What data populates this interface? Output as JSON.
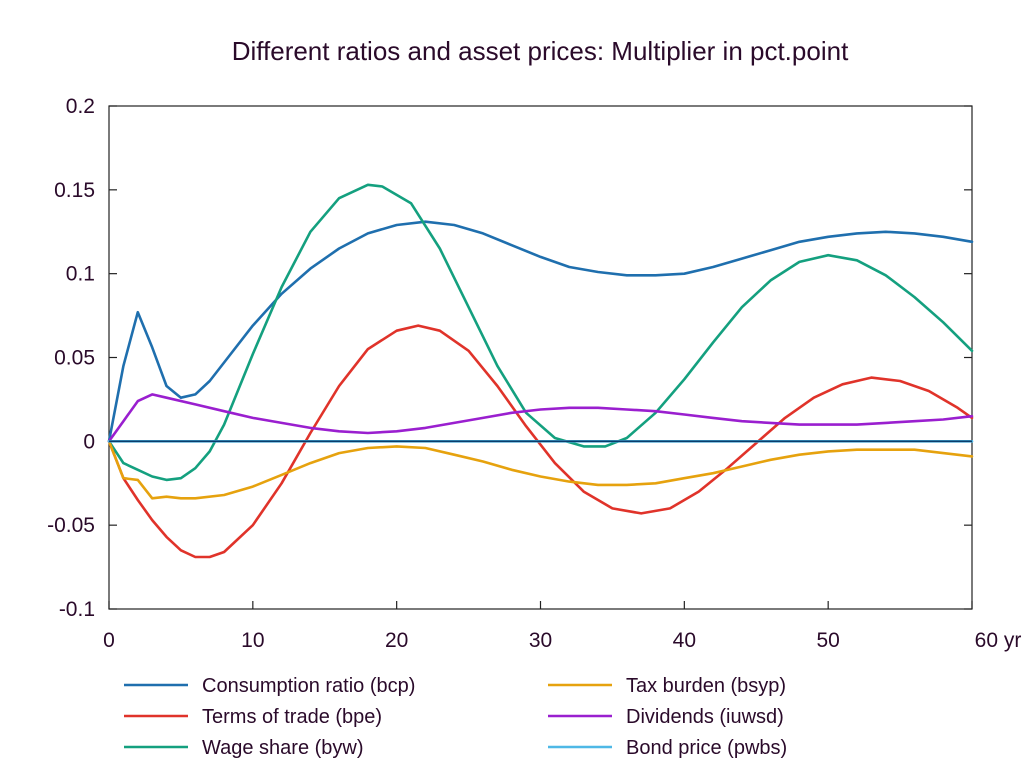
{
  "chart_data": {
    "type": "line",
    "title": "Different ratios and asset prices: Multiplier in pct.point",
    "xlim": [
      0,
      60
    ],
    "ylim": [
      -0.1,
      0.2
    ],
    "x_ticks": [
      0,
      10,
      20,
      30,
      40,
      50,
      60
    ],
    "x_tick_labels": [
      "0",
      "10",
      "20",
      "30",
      "40",
      "50",
      "60 yr"
    ],
    "y_ticks": [
      -0.1,
      -0.05,
      0,
      0.05,
      0.1,
      0.15,
      0.2
    ],
    "y_tick_labels": [
      "-0.1",
      "-0.05",
      "0",
      "0.05",
      "0.1",
      "0.15",
      "0.2"
    ],
    "zero_line": true,
    "grid": false,
    "legend_position": "bottom",
    "series": [
      {
        "name": "Consumption ratio (bcp)",
        "color": "#1f6fae",
        "points": [
          [
            0,
            0
          ],
          [
            1,
            0.045
          ],
          [
            2,
            0.077
          ],
          [
            3,
            0.056
          ],
          [
            4,
            0.033
          ],
          [
            5,
            0.026
          ],
          [
            6,
            0.028
          ],
          [
            7,
            0.036
          ],
          [
            8,
            0.047
          ],
          [
            10,
            0.069
          ],
          [
            12,
            0.088
          ],
          [
            14,
            0.103
          ],
          [
            16,
            0.115
          ],
          [
            18,
            0.124
          ],
          [
            20,
            0.129
          ],
          [
            22,
            0.131
          ],
          [
            24,
            0.129
          ],
          [
            26,
            0.124
          ],
          [
            28,
            0.117
          ],
          [
            30,
            0.11
          ],
          [
            32,
            0.104
          ],
          [
            34,
            0.101
          ],
          [
            36,
            0.099
          ],
          [
            38,
            0.099
          ],
          [
            40,
            0.1
          ],
          [
            42,
            0.104
          ],
          [
            44,
            0.109
          ],
          [
            46,
            0.114
          ],
          [
            48,
            0.119
          ],
          [
            50,
            0.122
          ],
          [
            52,
            0.124
          ],
          [
            54,
            0.125
          ],
          [
            56,
            0.124
          ],
          [
            58,
            0.122
          ],
          [
            60,
            0.119
          ]
        ]
      },
      {
        "name": "Terms of trade (bpe)",
        "color": "#e0332a",
        "points": [
          [
            0,
            0
          ],
          [
            1,
            -0.022
          ],
          [
            2,
            -0.035
          ],
          [
            3,
            -0.047
          ],
          [
            4,
            -0.057
          ],
          [
            5,
            -0.065
          ],
          [
            6,
            -0.069
          ],
          [
            7,
            -0.069
          ],
          [
            8,
            -0.066
          ],
          [
            10,
            -0.05
          ],
          [
            12,
            -0.025
          ],
          [
            14,
            0.005
          ],
          [
            16,
            0.033
          ],
          [
            18,
            0.055
          ],
          [
            20,
            0.066
          ],
          [
            21.5,
            0.069
          ],
          [
            23,
            0.066
          ],
          [
            25,
            0.054
          ],
          [
            27,
            0.033
          ],
          [
            29,
            0.009
          ],
          [
            31,
            -0.013
          ],
          [
            33,
            -0.03
          ],
          [
            35,
            -0.04
          ],
          [
            37,
            -0.043
          ],
          [
            39,
            -0.04
          ],
          [
            41,
            -0.03
          ],
          [
            43,
            -0.016
          ],
          [
            45,
            -0.001
          ],
          [
            47,
            0.014
          ],
          [
            49,
            0.026
          ],
          [
            51,
            0.034
          ],
          [
            53,
            0.038
          ],
          [
            55,
            0.036
          ],
          [
            57,
            0.03
          ],
          [
            59,
            0.02
          ],
          [
            60,
            0.014
          ]
        ]
      },
      {
        "name": "Wage share (byw)",
        "color": "#14a07f",
        "points": [
          [
            0,
            0
          ],
          [
            1,
            -0.013
          ],
          [
            2,
            -0.017
          ],
          [
            3,
            -0.021
          ],
          [
            4,
            -0.023
          ],
          [
            5,
            -0.022
          ],
          [
            6,
            -0.016
          ],
          [
            7,
            -0.006
          ],
          [
            8,
            0.01
          ],
          [
            10,
            0.052
          ],
          [
            12,
            0.092
          ],
          [
            14,
            0.125
          ],
          [
            16,
            0.145
          ],
          [
            18,
            0.153
          ],
          [
            19,
            0.152
          ],
          [
            21,
            0.142
          ],
          [
            23,
            0.115
          ],
          [
            25,
            0.08
          ],
          [
            27,
            0.045
          ],
          [
            29,
            0.017
          ],
          [
            31,
            0.002
          ],
          [
            33,
            -0.003
          ],
          [
            34.5,
            -0.003
          ],
          [
            36,
            0.002
          ],
          [
            38,
            0.017
          ],
          [
            40,
            0.037
          ],
          [
            42,
            0.059
          ],
          [
            44,
            0.08
          ],
          [
            46,
            0.096
          ],
          [
            48,
            0.107
          ],
          [
            50,
            0.111
          ],
          [
            52,
            0.108
          ],
          [
            54,
            0.099
          ],
          [
            56,
            0.086
          ],
          [
            58,
            0.071
          ],
          [
            60,
            0.054
          ]
        ]
      },
      {
        "name": "Tax burden (bsyp)",
        "color": "#e6a20e",
        "points": [
          [
            0,
            0
          ],
          [
            1,
            -0.022
          ],
          [
            2,
            -0.023
          ],
          [
            3,
            -0.034
          ],
          [
            4,
            -0.033
          ],
          [
            5,
            -0.034
          ],
          [
            6,
            -0.034
          ],
          [
            8,
            -0.032
          ],
          [
            10,
            -0.027
          ],
          [
            12,
            -0.02
          ],
          [
            14,
            -0.013
          ],
          [
            16,
            -0.007
          ],
          [
            18,
            -0.004
          ],
          [
            20,
            -0.003
          ],
          [
            22,
            -0.004
          ],
          [
            24,
            -0.008
          ],
          [
            26,
            -0.012
          ],
          [
            28,
            -0.017
          ],
          [
            30,
            -0.021
          ],
          [
            32,
            -0.024
          ],
          [
            34,
            -0.026
          ],
          [
            36,
            -0.026
          ],
          [
            38,
            -0.025
          ],
          [
            40,
            -0.022
          ],
          [
            42,
            -0.019
          ],
          [
            44,
            -0.015
          ],
          [
            46,
            -0.011
          ],
          [
            48,
            -0.008
          ],
          [
            50,
            -0.006
          ],
          [
            52,
            -0.005
          ],
          [
            54,
            -0.005
          ],
          [
            56,
            -0.005
          ],
          [
            58,
            -0.007
          ],
          [
            60,
            -0.009
          ]
        ]
      },
      {
        "name": "Dividends (iuwsd)",
        "color": "#9a1fcf",
        "points": [
          [
            0,
            0
          ],
          [
            1,
            0.012
          ],
          [
            2,
            0.024
          ],
          [
            3,
            0.028
          ],
          [
            4,
            0.026
          ],
          [
            6,
            0.022
          ],
          [
            8,
            0.018
          ],
          [
            10,
            0.014
          ],
          [
            12,
            0.011
          ],
          [
            14,
            0.008
          ],
          [
            16,
            0.006
          ],
          [
            18,
            0.005
          ],
          [
            20,
            0.006
          ],
          [
            22,
            0.008
          ],
          [
            24,
            0.011
          ],
          [
            26,
            0.014
          ],
          [
            28,
            0.017
          ],
          [
            30,
            0.019
          ],
          [
            32,
            0.02
          ],
          [
            34,
            0.02
          ],
          [
            36,
            0.019
          ],
          [
            38,
            0.018
          ],
          [
            40,
            0.016
          ],
          [
            42,
            0.014
          ],
          [
            44,
            0.012
          ],
          [
            46,
            0.011
          ],
          [
            48,
            0.01
          ],
          [
            50,
            0.01
          ],
          [
            52,
            0.01
          ],
          [
            54,
            0.011
          ],
          [
            56,
            0.012
          ],
          [
            58,
            0.013
          ],
          [
            60,
            0.015
          ]
        ]
      },
      {
        "name": "Bond price (pwbs)",
        "color": "#4eb8e6",
        "points": [
          [
            0,
            0
          ],
          [
            60,
            0
          ]
        ]
      }
    ]
  }
}
